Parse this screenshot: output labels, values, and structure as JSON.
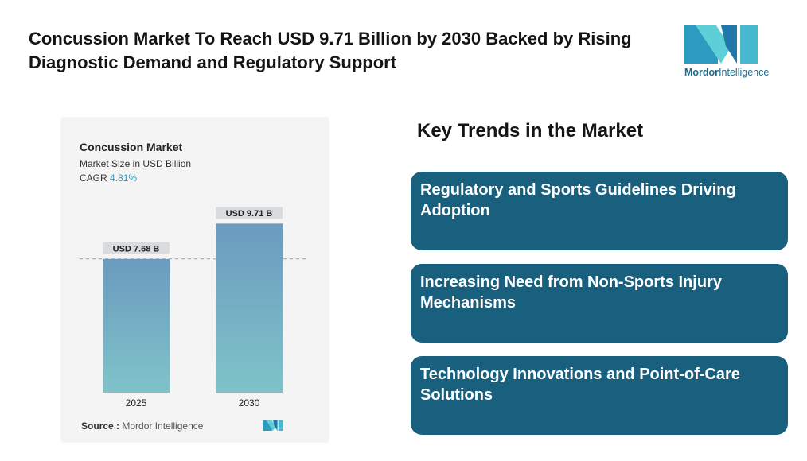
{
  "headline": "Concussion Market To Reach USD 9.71 Billion by 2030 Backed by Rising Diagnostic Demand and Regulatory Support",
  "logo": {
    "word1": "Mordor",
    "word2": "Intelligence",
    "icon": "mordor-m-logo"
  },
  "chart_data": {
    "type": "bar",
    "title": "Concussion Market",
    "subtitle": "Market Size in USD Billion",
    "cagr_label": "CAGR",
    "cagr_value": "4.81%",
    "categories": [
      "2025",
      "2030"
    ],
    "values": [
      7.68,
      9.71
    ],
    "data_labels": [
      "USD 7.68 B",
      "USD 9.71 B"
    ],
    "reference_line": "dashed line at 2025 value",
    "grid": false,
    "colors": {
      "bar_top": "#6b9bbf",
      "bar_bottom": "#7fc3c9",
      "label_bg": "#d9dcdf"
    }
  },
  "source": {
    "label": "Source :",
    "text": "Mordor Intelligence"
  },
  "key_trends": {
    "title": "Key Trends in the Market",
    "items": [
      {
        "text": "Regulatory and Sports Guidelines Driving Adoption"
      },
      {
        "text": "Increasing Need from Non-Sports Injury Mechanisms"
      },
      {
        "text": "Technology Innovations and Point-of-Care Solutions"
      }
    ]
  }
}
